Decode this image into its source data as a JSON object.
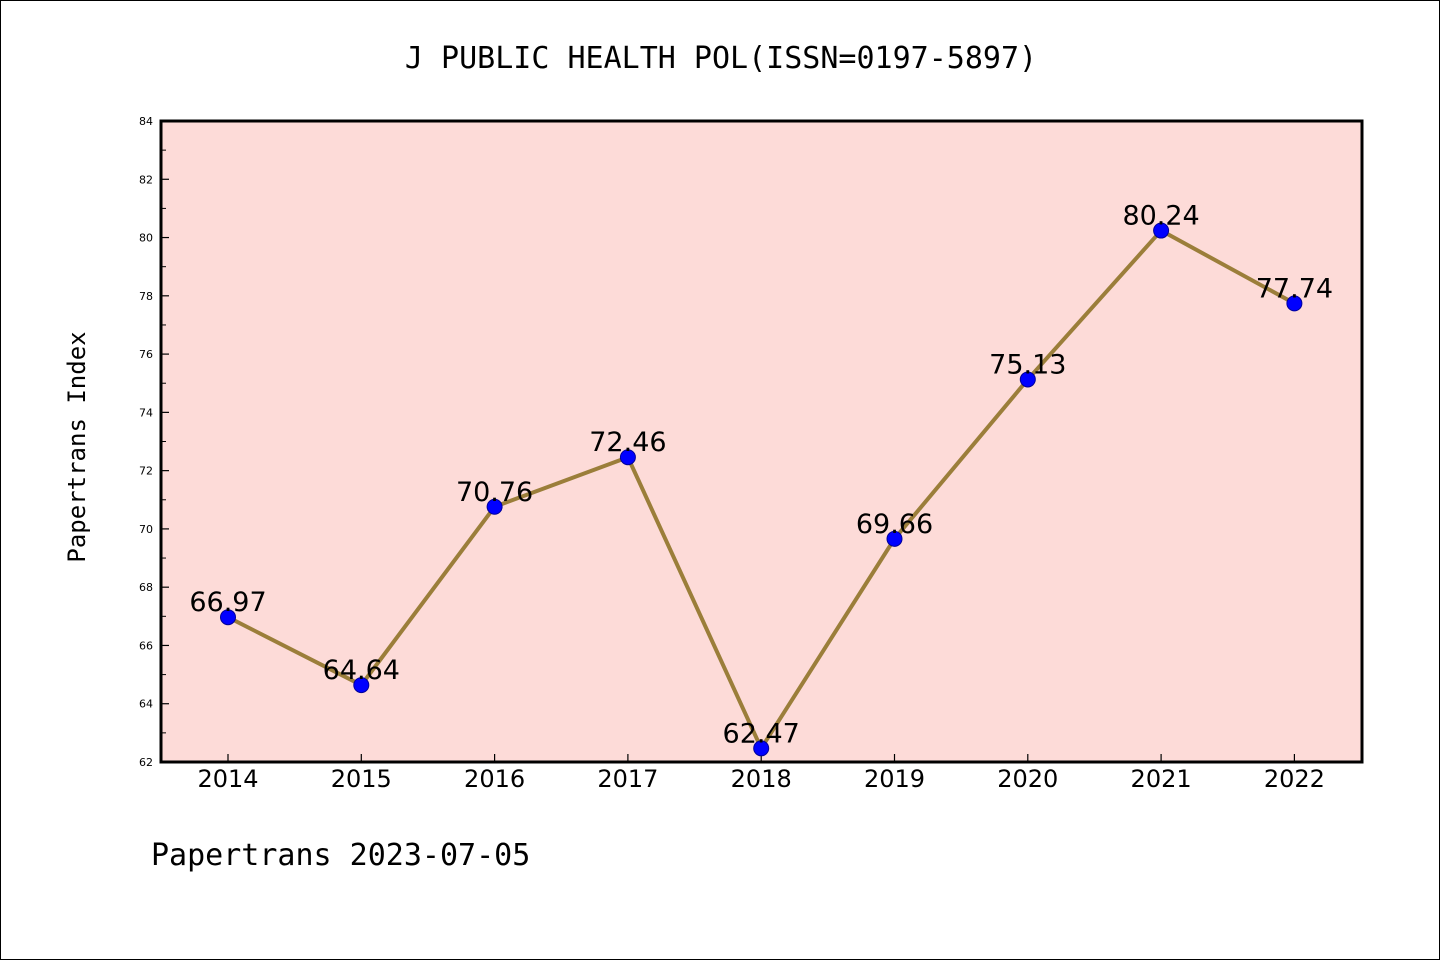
{
  "chart_data": {
    "type": "line",
    "title": "J PUBLIC HEALTH POL(ISSN=0197-5897)",
    "xlabel": "",
    "ylabel": "Papertrans Index",
    "footer": "Papertrans 2023-07-05",
    "categories": [
      "2014",
      "2015",
      "2016",
      "2017",
      "2018",
      "2019",
      "2020",
      "2021",
      "2022"
    ],
    "series": [
      {
        "values": [
          66.97,
          64.64,
          70.76,
          72.46,
          62.47,
          69.66,
          75.13,
          80.24,
          77.74
        ]
      }
    ],
    "data_labels": [
      "66.97",
      "64.64",
      "70.76",
      "72.46",
      "62.47",
      "69.66",
      "75.13",
      "80.24",
      "77.74"
    ],
    "ylim": [
      62,
      84
    ],
    "yticks": [
      62,
      64,
      66,
      68,
      70,
      72,
      74,
      76,
      78,
      80,
      82,
      84
    ],
    "grid": false,
    "colors": {
      "plot_background": "#fddbd8",
      "line": "#9b7e3a",
      "marker": "#0000ff"
    }
  }
}
